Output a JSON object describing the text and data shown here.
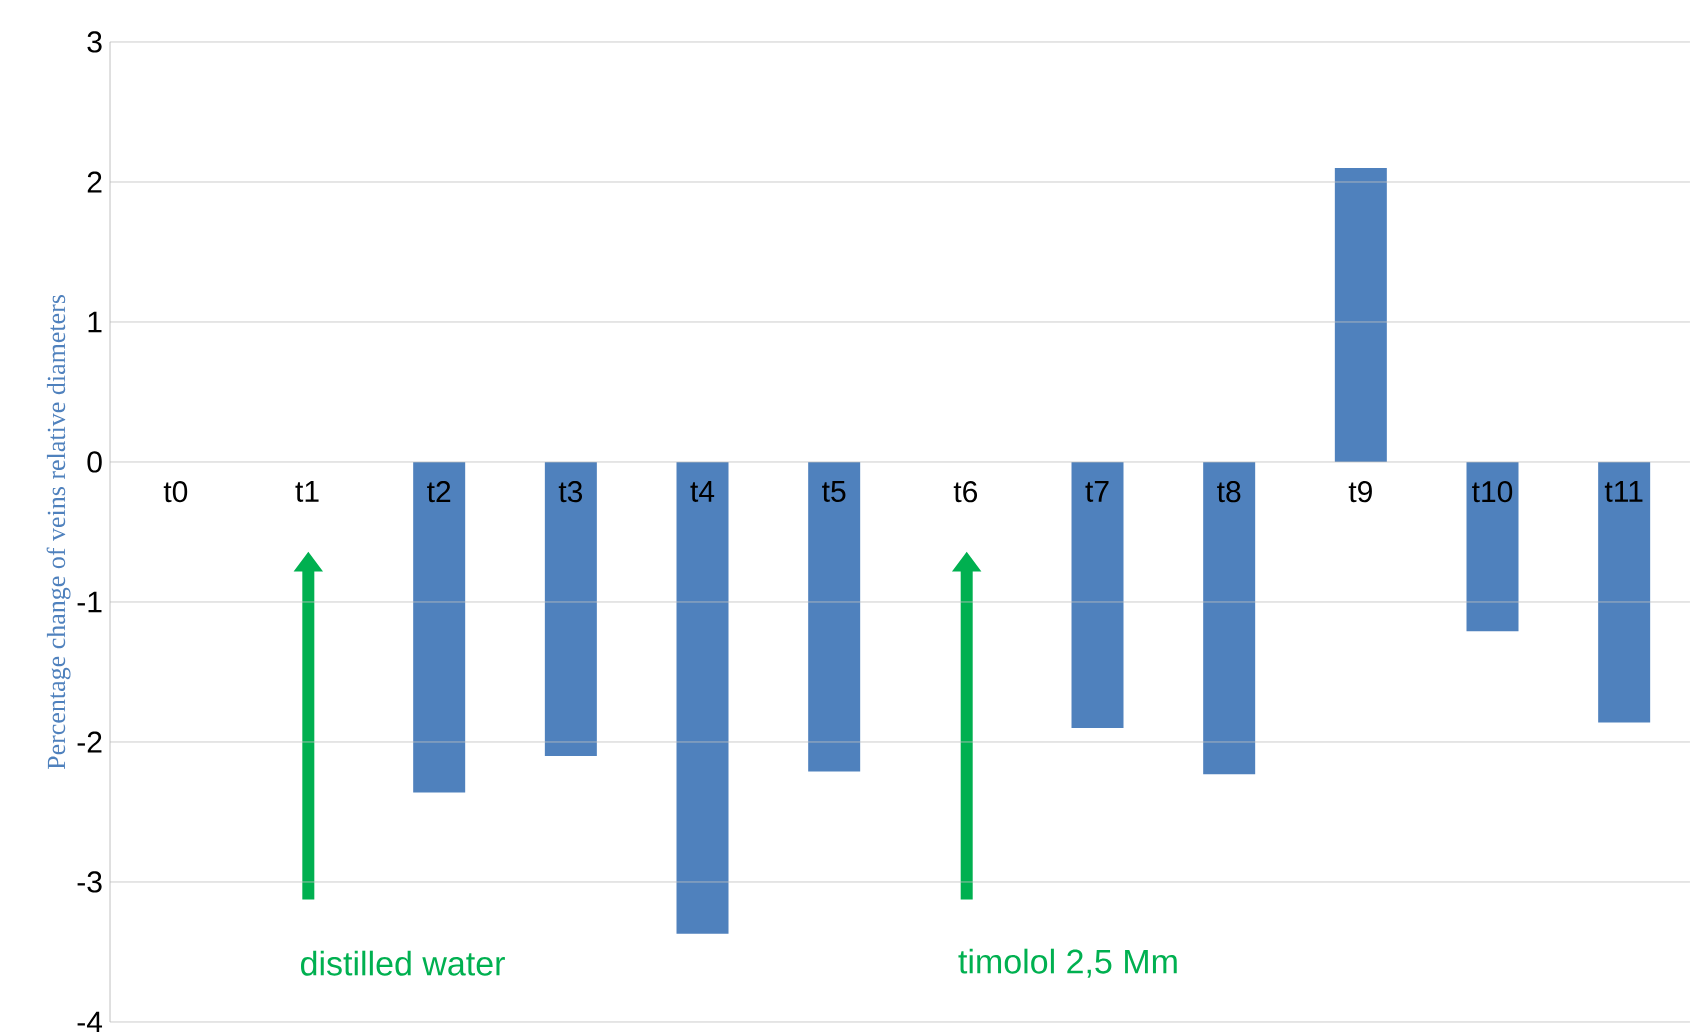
{
  "chart_data": {
    "type": "bar",
    "ylabel": "Percentage change of veins relative diameters",
    "categories": [
      "t0",
      "t1",
      "t2",
      "t3",
      "t4",
      "t5",
      "t6",
      "t7",
      "t8",
      "t9",
      "t10",
      "t11"
    ],
    "values": [
      0,
      0,
      -2.36,
      -2.1,
      -3.37,
      -2.21,
      0,
      -1.9,
      -2.23,
      2.1,
      -1.21,
      -1.86
    ],
    "color": "#4f81bd",
    "ylim": [
      -4,
      3
    ],
    "yticks": [
      -4,
      -3,
      -2,
      -1,
      0,
      1,
      2,
      3
    ],
    "grid": "y",
    "annotations": [
      "distilled water",
      "timolol 2,5 Mm"
    ]
  }
}
